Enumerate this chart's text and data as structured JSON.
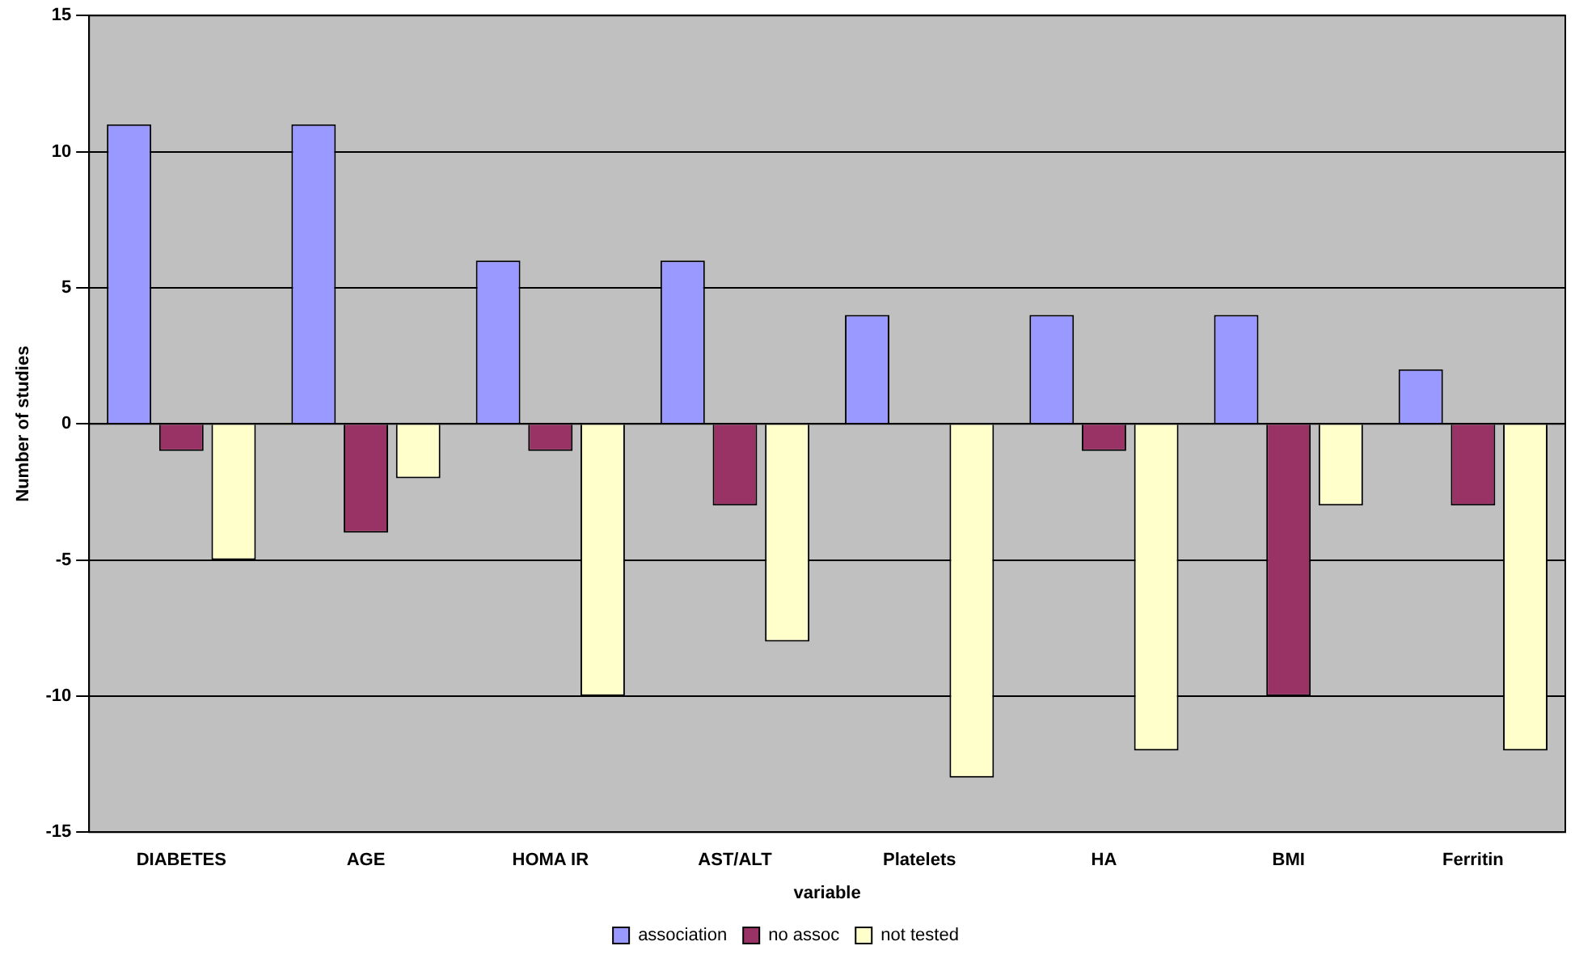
{
  "chart_data": {
    "type": "bar",
    "xlabel": "variable",
    "ylabel": "Number of studies",
    "categories": [
      "DIABETES",
      "AGE",
      "HOMA IR",
      "AST/ALT",
      "Platelets",
      "HA",
      "BMI",
      "Ferritin"
    ],
    "series": [
      {
        "name": "association",
        "color": "#9999ff",
        "values": [
          11,
          11,
          6,
          6,
          4,
          4,
          4,
          2
        ]
      },
      {
        "name": "no assoc",
        "color": "#993366",
        "values": [
          -1,
          -4,
          -1,
          -3,
          0,
          -1,
          -10,
          -3
        ]
      },
      {
        "name": "not tested",
        "color": "#ffffcc",
        "values": [
          -5,
          -2,
          -10,
          -8,
          -13,
          -12,
          -3,
          -12
        ]
      }
    ],
    "ylim": [
      -15,
      15
    ],
    "yticks": [
      -15,
      -10,
      -5,
      0,
      5,
      10,
      15
    ],
    "grid": "y",
    "legend": "bottom"
  }
}
